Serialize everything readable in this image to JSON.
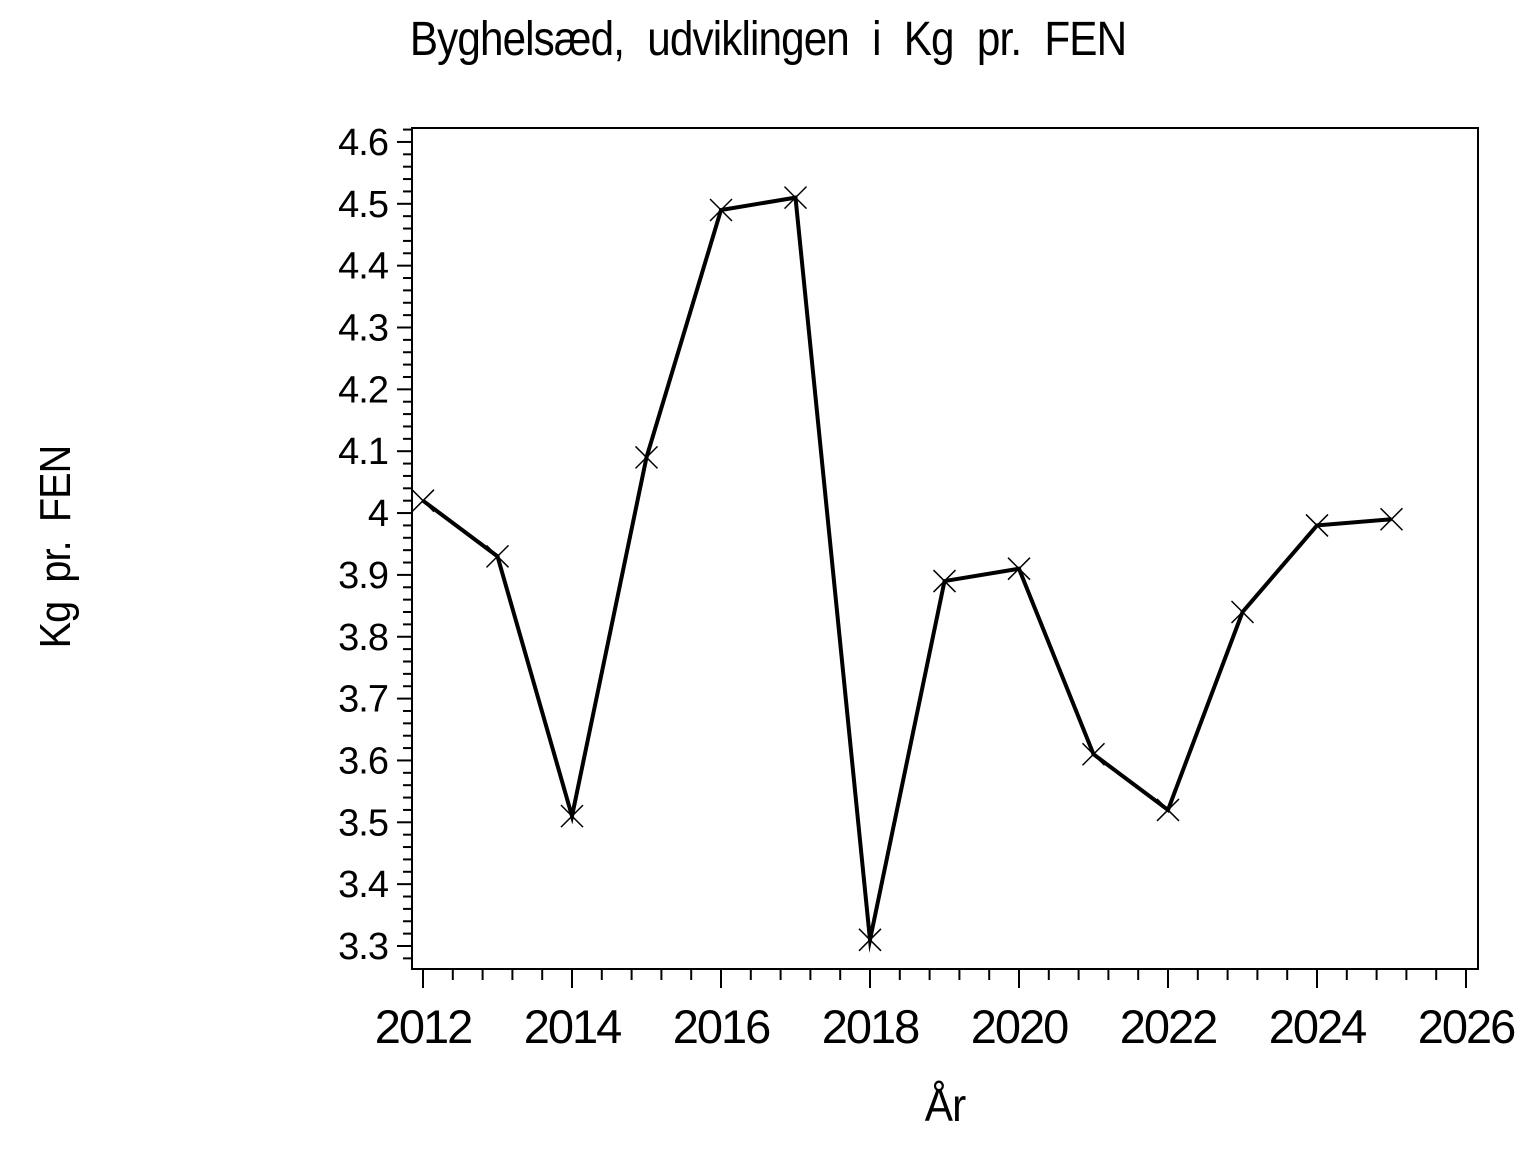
{
  "page": {
    "background": "#ffffff",
    "foreground": "#000000"
  },
  "chart_data": {
    "type": "line",
    "title": "Byghelsæd, udviklingen i Kg pr. FEN",
    "xlabel": "År",
    "ylabel": "Kg pr. FEN",
    "x": [
      2012,
      2013,
      2014,
      2015,
      2016,
      2017,
      2018,
      2019,
      2020,
      2021,
      2022,
      2023,
      2024,
      2025
    ],
    "series": [
      {
        "name": "Kg pr. FEN",
        "values": [
          4.02,
          3.93,
          3.51,
          4.09,
          4.49,
          4.51,
          3.31,
          3.89,
          3.91,
          3.61,
          3.52,
          3.84,
          3.98,
          3.99
        ]
      }
    ],
    "xlim": [
      2011.85,
      2026.16
    ],
    "ylim": [
      3.26,
      4.62
    ],
    "x_ticks": [
      "2012",
      "2014",
      "2016",
      "2018",
      "2020",
      "2022",
      "2024",
      "2026"
    ],
    "y_ticks": [
      "3.3",
      "3.4",
      "3.5",
      "3.6",
      "3.7",
      "3.8",
      "3.9",
      "4",
      "4.1",
      "4.2",
      "4.3",
      "4.4",
      "4.5",
      "4.6"
    ],
    "minor_ticks_per_major_interval": 4,
    "grid": "off",
    "legend": "none",
    "marker": "x-cross",
    "line_color": "#000000",
    "frame": "box"
  }
}
